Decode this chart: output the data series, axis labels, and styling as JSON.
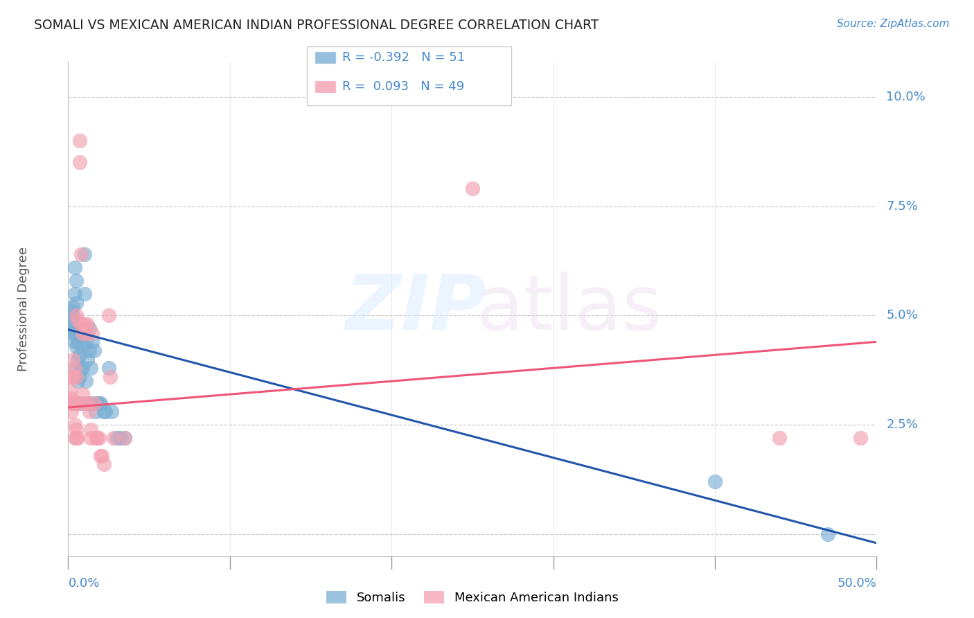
{
  "title": "SOMALI VS MEXICAN AMERICAN INDIAN PROFESSIONAL DEGREE CORRELATION CHART",
  "source": "Source: ZipAtlas.com",
  "ylabel": "Professional Degree",
  "yticks": [
    0.0,
    0.025,
    0.05,
    0.075,
    0.1
  ],
  "ytick_labels": [
    "",
    "2.5%",
    "5.0%",
    "7.5%",
    "10.0%"
  ],
  "xlim": [
    0.0,
    0.5
  ],
  "ylim": [
    -0.005,
    0.108
  ],
  "legend_r1": "R = -0.392",
  "legend_n1": "N = 51",
  "legend_r2": "R =  0.093",
  "legend_n2": "N = 49",
  "blue_color": "#7BAFD4",
  "pink_color": "#F4A0B0",
  "blue_line_color": "#2255AA",
  "pink_line_color": "#EE5577",
  "title_color": "#222222",
  "axis_label_color": "#4488CC",
  "somali_points": [
    [
      0.001,
      0.049
    ],
    [
      0.001,
      0.048
    ],
    [
      0.002,
      0.049
    ],
    [
      0.002,
      0.047
    ],
    [
      0.002,
      0.051
    ],
    [
      0.003,
      0.052
    ],
    [
      0.003,
      0.046
    ],
    [
      0.003,
      0.05
    ],
    [
      0.004,
      0.046
    ],
    [
      0.004,
      0.044
    ],
    [
      0.004,
      0.055
    ],
    [
      0.004,
      0.061
    ],
    [
      0.005,
      0.058
    ],
    [
      0.005,
      0.053
    ],
    [
      0.005,
      0.043
    ],
    [
      0.005,
      0.038
    ],
    [
      0.006,
      0.044
    ],
    [
      0.006,
      0.04
    ],
    [
      0.006,
      0.035
    ],
    [
      0.007,
      0.046
    ],
    [
      0.007,
      0.041
    ],
    [
      0.007,
      0.036
    ],
    [
      0.008,
      0.038
    ],
    [
      0.008,
      0.03
    ],
    [
      0.009,
      0.038
    ],
    [
      0.009,
      0.043
    ],
    [
      0.01,
      0.064
    ],
    [
      0.01,
      0.055
    ],
    [
      0.011,
      0.044
    ],
    [
      0.011,
      0.035
    ],
    [
      0.012,
      0.04
    ],
    [
      0.012,
      0.03
    ],
    [
      0.013,
      0.047
    ],
    [
      0.013,
      0.042
    ],
    [
      0.014,
      0.038
    ],
    [
      0.014,
      0.03
    ],
    [
      0.015,
      0.044
    ],
    [
      0.016,
      0.042
    ],
    [
      0.017,
      0.028
    ],
    [
      0.018,
      0.03
    ],
    [
      0.019,
      0.03
    ],
    [
      0.02,
      0.03
    ],
    [
      0.022,
      0.028
    ],
    [
      0.023,
      0.028
    ],
    [
      0.025,
      0.038
    ],
    [
      0.027,
      0.028
    ],
    [
      0.03,
      0.022
    ],
    [
      0.032,
      0.022
    ],
    [
      0.035,
      0.022
    ],
    [
      0.4,
      0.012
    ],
    [
      0.47,
      0.0
    ]
  ],
  "mexican_points": [
    [
      0.001,
      0.033
    ],
    [
      0.001,
      0.03
    ],
    [
      0.002,
      0.036
    ],
    [
      0.002,
      0.031
    ],
    [
      0.002,
      0.028
    ],
    [
      0.003,
      0.04
    ],
    [
      0.003,
      0.036
    ],
    [
      0.003,
      0.03
    ],
    [
      0.004,
      0.038
    ],
    [
      0.004,
      0.03
    ],
    [
      0.004,
      0.025
    ],
    [
      0.004,
      0.022
    ],
    [
      0.005,
      0.05
    ],
    [
      0.005,
      0.036
    ],
    [
      0.005,
      0.024
    ],
    [
      0.005,
      0.022
    ],
    [
      0.006,
      0.049
    ],
    [
      0.006,
      0.03
    ],
    [
      0.006,
      0.022
    ],
    [
      0.007,
      0.09
    ],
    [
      0.007,
      0.085
    ],
    [
      0.008,
      0.048
    ],
    [
      0.008,
      0.064
    ],
    [
      0.009,
      0.046
    ],
    [
      0.009,
      0.032
    ],
    [
      0.01,
      0.048
    ],
    [
      0.01,
      0.03
    ],
    [
      0.011,
      0.047
    ],
    [
      0.011,
      0.046
    ],
    [
      0.012,
      0.048
    ],
    [
      0.012,
      0.03
    ],
    [
      0.013,
      0.028
    ],
    [
      0.014,
      0.022
    ],
    [
      0.014,
      0.024
    ],
    [
      0.015,
      0.046
    ],
    [
      0.016,
      0.03
    ],
    [
      0.017,
      0.022
    ],
    [
      0.018,
      0.022
    ],
    [
      0.019,
      0.022
    ],
    [
      0.02,
      0.018
    ],
    [
      0.021,
      0.018
    ],
    [
      0.022,
      0.016
    ],
    [
      0.025,
      0.05
    ],
    [
      0.026,
      0.036
    ],
    [
      0.028,
      0.022
    ],
    [
      0.035,
      0.022
    ],
    [
      0.25,
      0.079
    ],
    [
      0.44,
      0.022
    ],
    [
      0.49,
      0.022
    ]
  ],
  "somali_trend_x": [
    0.0,
    0.5
  ],
  "somali_trend_y": [
    0.0468,
    -0.002
  ],
  "mexican_trend_x": [
    0.0,
    0.5
  ],
  "mexican_trend_y": [
    0.029,
    0.044
  ]
}
